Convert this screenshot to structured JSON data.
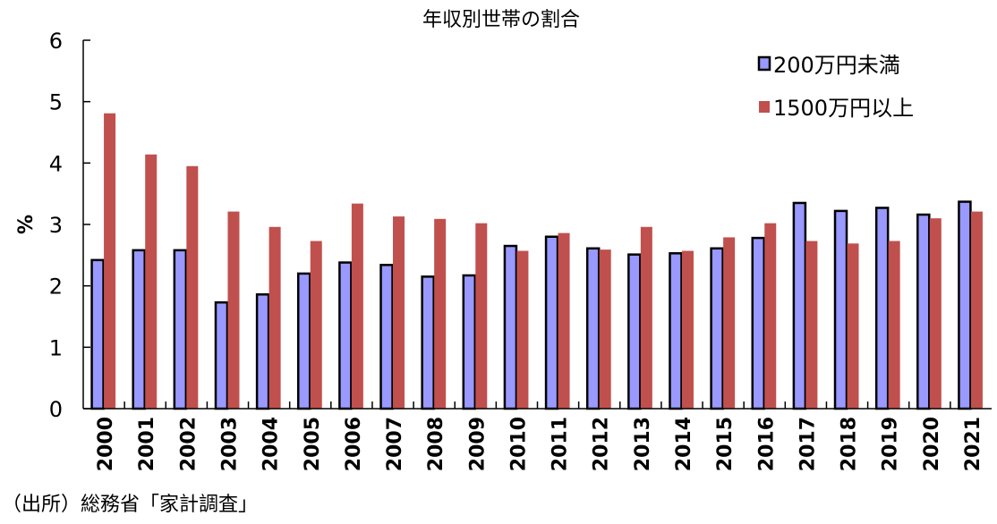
{
  "chart_data": {
    "type": "bar",
    "title": "年収別世帯の割合",
    "ylabel": "%",
    "xlabel": "",
    "ylim": [
      0,
      6
    ],
    "yticks": [
      0,
      1,
      2,
      3,
      4,
      5,
      6
    ],
    "grid": false,
    "legend_position": "top-right",
    "categories": [
      "2000",
      "2001",
      "2002",
      "2003",
      "2004",
      "2005",
      "2006",
      "2007",
      "2008",
      "2009",
      "2010",
      "2011",
      "2012",
      "2013",
      "2014",
      "2015",
      "2016",
      "2017",
      "2018",
      "2019",
      "2020",
      "2021"
    ],
    "series": [
      {
        "name": "200万円未満",
        "color": "#9999ff",
        "values": [
          2.42,
          2.58,
          2.58,
          1.73,
          1.86,
          2.2,
          2.38,
          2.34,
          2.15,
          2.17,
          2.65,
          2.8,
          2.61,
          2.51,
          2.53,
          2.61,
          2.78,
          3.35,
          3.22,
          3.27,
          3.16,
          3.37
        ]
      },
      {
        "name": "1500万円以上",
        "color": "#c0504d",
        "values": [
          4.81,
          4.14,
          3.95,
          3.21,
          2.96,
          2.73,
          3.34,
          3.13,
          3.09,
          3.02,
          2.57,
          2.86,
          2.59,
          2.96,
          2.57,
          2.79,
          3.02,
          2.73,
          2.69,
          2.73,
          3.1,
          3.21
        ]
      }
    ],
    "source": "（出所）総務省「家計調査」"
  }
}
